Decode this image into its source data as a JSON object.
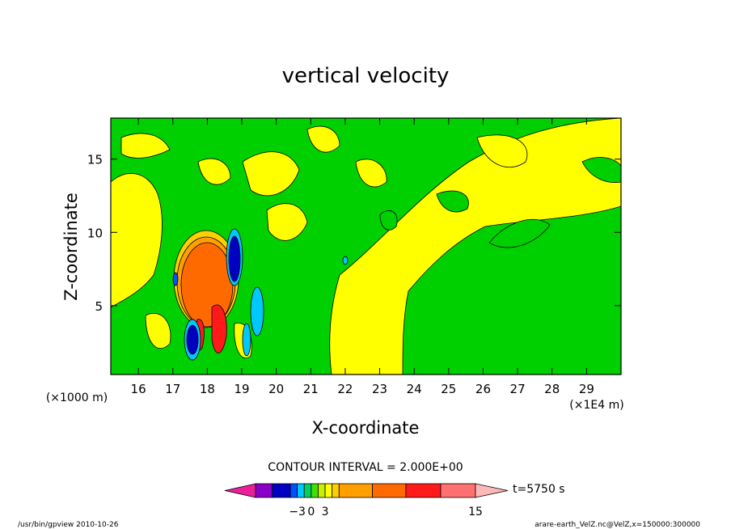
{
  "chart_data": {
    "type": "heatmap",
    "title": "vertical velocity",
    "xlabel": "X-coordinate",
    "ylabel": "Z-coordinate",
    "x_unit_left": "(×1000 m)",
    "x_unit_right": "(×1E4 m)",
    "xlim": [
      15.2,
      30
    ],
    "ylim": [
      0.3,
      17.8
    ],
    "x_ticks": [
      16,
      17,
      18,
      19,
      20,
      21,
      22,
      23,
      24,
      25,
      26,
      27,
      28,
      29
    ],
    "y_ticks": [
      5,
      10,
      15
    ],
    "contour_interval_text": "CONTOUR INTERVAL = 2.000E+00",
    "time_label": "t=5750 s",
    "colorbar": {
      "labels": [
        {
          "value": -3,
          "text": "−3"
        },
        {
          "value": 0,
          "text": "0"
        },
        {
          "value": 3,
          "text": "3"
        },
        {
          "value": 15,
          "text": "15"
        }
      ],
      "colors": [
        "#e8209a",
        "#8a00c8",
        "#0000c0",
        "#0050ff",
        "#00c8ff",
        "#00d060",
        "#40e000",
        "#c8f000",
        "#ffff00",
        "#ffd000",
        "#ffa000",
        "#ff6a00",
        "#ff1a1a",
        "#ff7070",
        "#ffb8b8"
      ]
    },
    "regions": [
      {
        "color": "#00d000",
        "label": "near zero / weak downdraft (background)"
      },
      {
        "color": "#ffff00",
        "label": "weak updraft"
      },
      {
        "color": "#ff6a00",
        "label": "strong updraft core near x=17.9, z=7"
      },
      {
        "color": "#0000c0",
        "label": "downdraft near x=18.6, z=8"
      }
    ]
  },
  "footer": {
    "left": "/usr/bin/gpview   2010-10-26",
    "right": "arare-earth_VelZ.nc@VelZ,x=150000:300000"
  }
}
